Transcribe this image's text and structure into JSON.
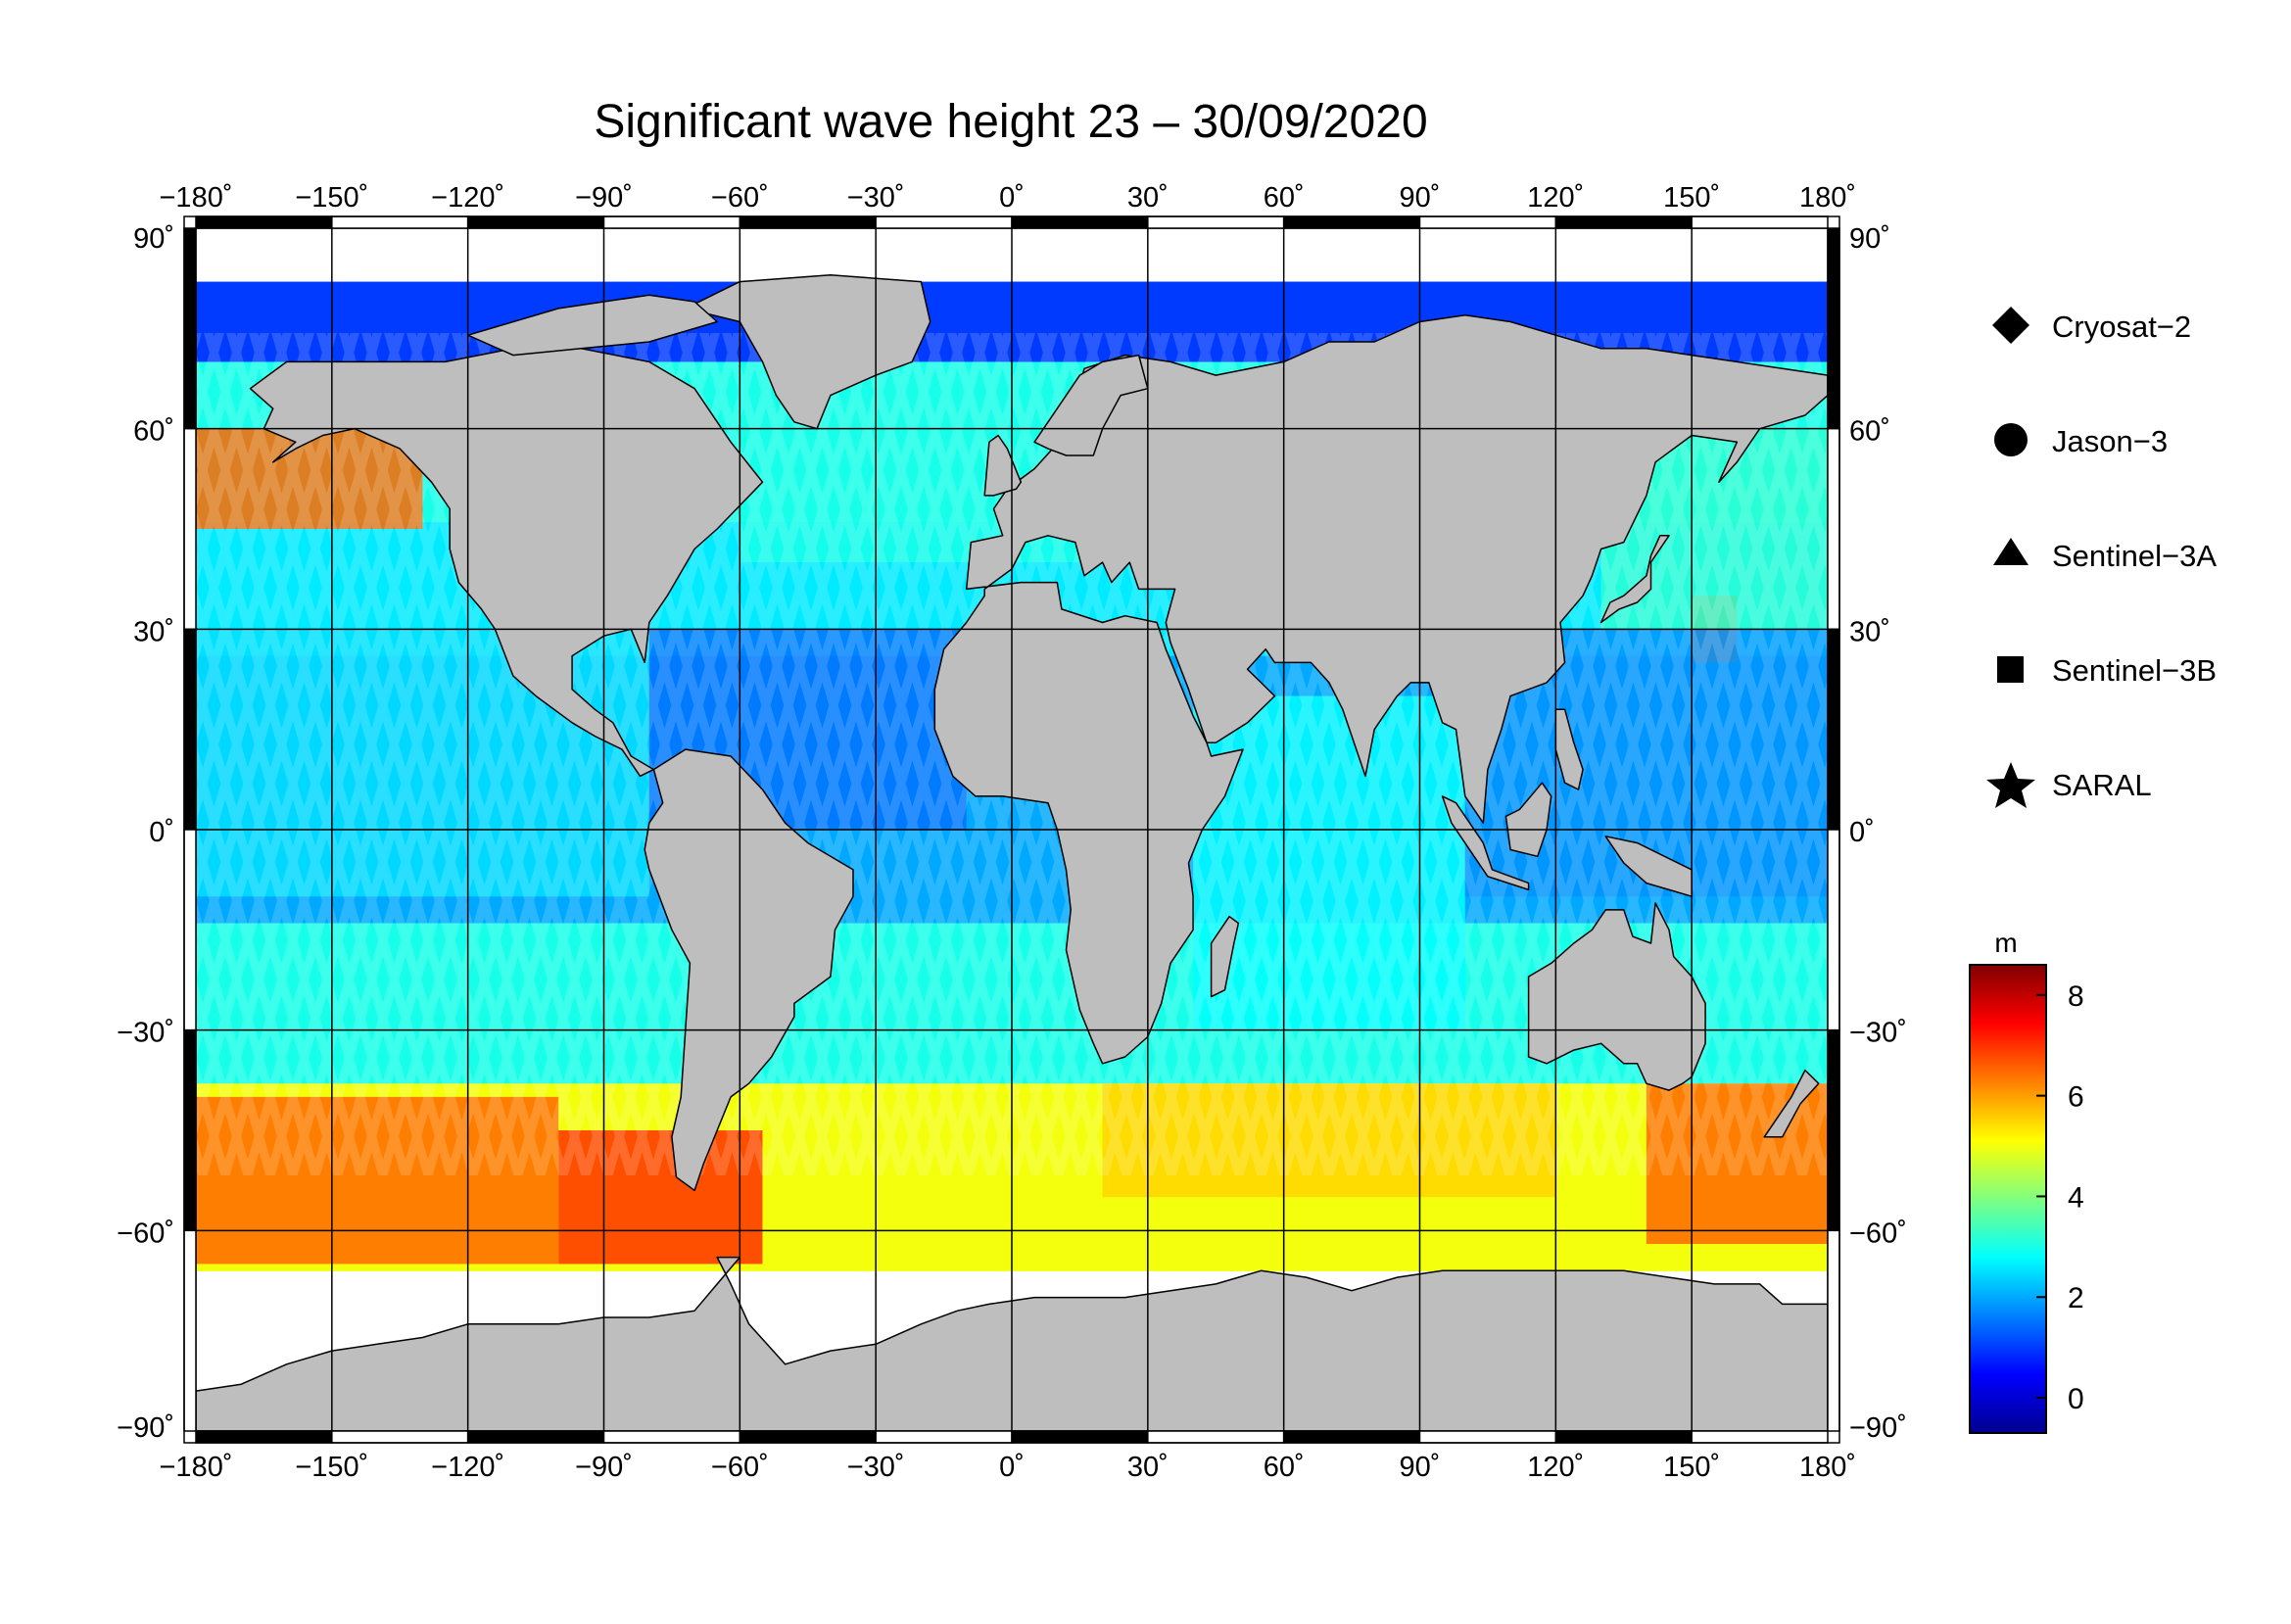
{
  "title": "Significant wave height 23 – 30/09/2020",
  "map": {
    "projection": "equirectangular",
    "lon_range": [
      -180,
      180
    ],
    "lat_range": [
      -90,
      90
    ],
    "ocean_no_data_color": "#ffffff",
    "land_color": "#bebebe",
    "coastline_color": "#000000",
    "graticule_color": "#000000",
    "lon_ticks": [
      -180,
      -150,
      -120,
      -90,
      -60,
      -30,
      0,
      30,
      60,
      90,
      120,
      150,
      180
    ],
    "lat_ticks": [
      90,
      60,
      30,
      0,
      -30,
      -60,
      -90
    ],
    "lon_tick_labels": [
      "−180˚",
      "−150˚",
      "−120˚",
      "−90˚",
      "−60˚",
      "−30˚",
      "0˚",
      "30˚",
      "60˚",
      "90˚",
      "120˚",
      "150˚",
      "180˚"
    ],
    "lat_tick_labels": [
      "90˚",
      "60˚",
      "30˚",
      "0˚",
      "−30˚",
      "−60˚",
      "−90˚"
    ]
  },
  "legend": {
    "items": [
      {
        "label": "Cryosat−2",
        "symbol": "diamond-icon"
      },
      {
        "label": "Jason−3",
        "symbol": "circle-icon"
      },
      {
        "label": "Sentinel−3A",
        "symbol": "triangle-icon"
      },
      {
        "label": "Sentinel−3B",
        "symbol": "square-icon"
      },
      {
        "label": "SARAL",
        "symbol": "star-icon"
      }
    ]
  },
  "colorbar": {
    "unit": "m",
    "min": -0.7,
    "max": 8.6,
    "ticks": [
      0,
      2,
      4,
      6,
      8
    ],
    "tick_labels": [
      "0",
      "2",
      "4",
      "6",
      "8"
    ],
    "colormap": [
      "#00008f",
      "#0000ff",
      "#0080ff",
      "#00ffff",
      "#80ff80",
      "#ffff00",
      "#ff8000",
      "#ff0000",
      "#800000"
    ]
  },
  "chart_data": {
    "type": "heatmap",
    "title": "Significant wave height 23 – 30/09/2020",
    "variable_unit": "m",
    "value_range": [
      -0.7,
      8.6
    ],
    "x_range": [
      -180,
      180
    ],
    "y_range": [
      -90,
      90
    ],
    "swh_by_region": [
      {
        "lon_min": -180,
        "lon_max": -130,
        "lat_min": 45,
        "lat_max": 60,
        "swh": 6.5
      },
      {
        "lon_min": -180,
        "lon_max": -100,
        "lat_min": -65,
        "lat_max": -40,
        "swh": 6.5
      },
      {
        "lon_min": -100,
        "lon_max": -55,
        "lat_min": -65,
        "lat_max": -45,
        "swh": 7.0
      },
      {
        "lon_min": 20,
        "lon_max": 120,
        "lat_min": -55,
        "lat_max": -38,
        "swh": 5.5
      },
      {
        "lon_min": 140,
        "lon_max": 180,
        "lat_min": -62,
        "lat_max": -38,
        "swh": 6.5
      },
      {
        "lon_min": 150,
        "lon_max": 160,
        "lat_min": 25,
        "lat_max": 35,
        "swh": 6.5
      },
      {
        "lon_min": -180,
        "lon_max": -80,
        "lat_min": -10,
        "lat_max": 30,
        "swh": 2.5
      },
      {
        "lon_min": -80,
        "lon_max": -10,
        "lat_min": 0,
        "lat_max": 30,
        "swh": 1.5
      },
      {
        "lon_min": 40,
        "lon_max": 100,
        "lat_min": -30,
        "lat_max": 20,
        "swh": 2.8
      },
      {
        "lon_min": 100,
        "lon_max": 180,
        "lat_min": -10,
        "lat_max": 30,
        "swh": 1.8
      },
      {
        "lon_min": -60,
        "lon_max": 20,
        "lat_min": 40,
        "lat_max": 70,
        "swh": 3.0
      },
      {
        "lon_min": 0,
        "lon_max": 180,
        "lat_min": 70,
        "lat_max": 82,
        "swh": 1.0
      },
      {
        "lon_min": 130,
        "lon_max": 180,
        "lat_min": 30,
        "lat_max": 60,
        "swh": 3.2
      }
    ],
    "legend_series": [
      "Cryosat−2",
      "Jason−3",
      "Sentinel−3A",
      "Sentinel−3B",
      "SARAL"
    ]
  }
}
